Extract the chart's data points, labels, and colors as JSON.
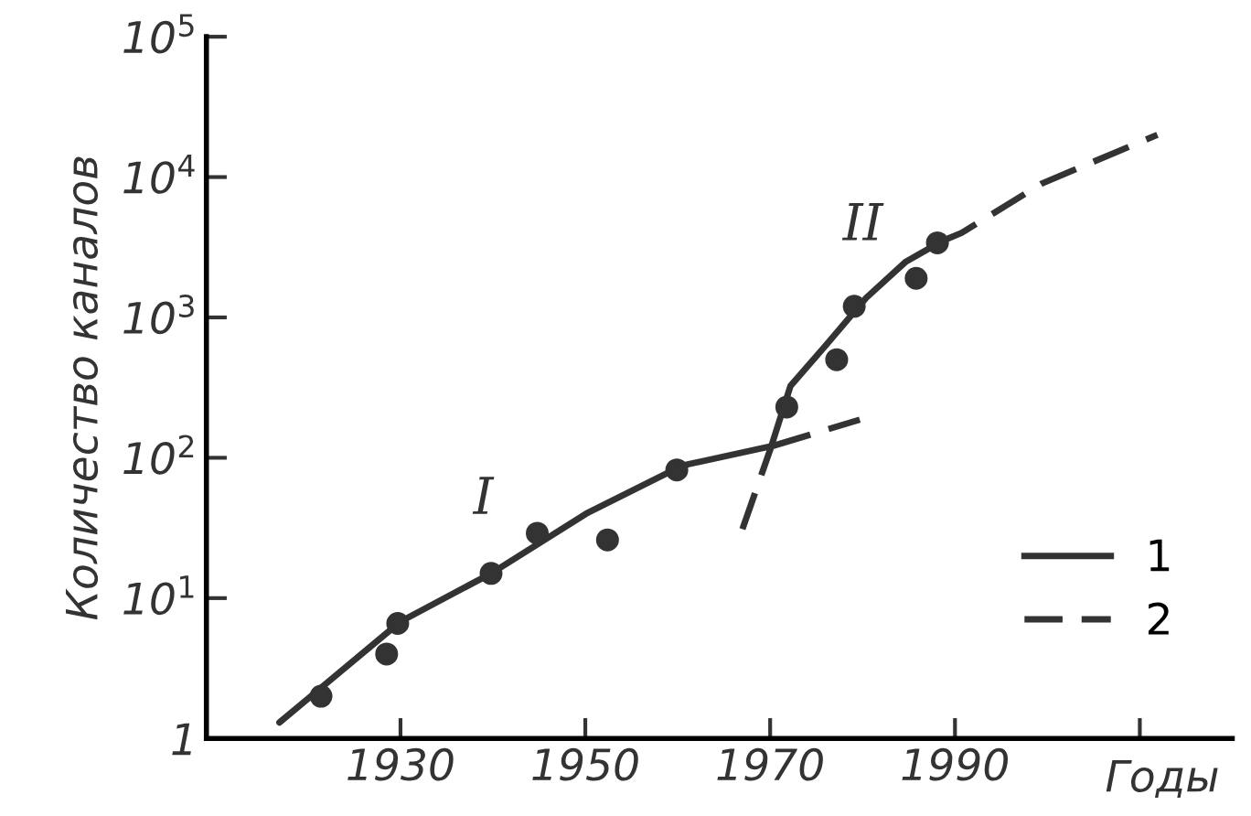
{
  "chart_data": {
    "type": "line",
    "xlabel": "Годы",
    "ylabel": "Количество каналов",
    "log": "y",
    "xlim": [
      1909,
      2020
    ],
    "ylim": [
      1,
      100000
    ],
    "xticks": [
      1930,
      1950,
      1970,
      1990,
      {
        "value": 2010,
        "label": null
      }
    ],
    "yticks": [
      1,
      {
        "value": 10,
        "label": "10$^{1}$"
      },
      {
        "value": 100,
        "label": "10$^{2}$"
      },
      {
        "value": 1000,
        "label": "10$^{3}$"
      },
      {
        "value": 10000,
        "label": "10$^{4}$"
      },
      {
        "value": 100000,
        "label": "10$^{5}$"
      }
    ],
    "grid": false,
    "legend": "bottom right",
    "series": [
      {
        "type": "scatter",
        "color": "#333333",
        "marker": "circle",
        "x": [
          1921.4,
          1928.5,
          1929.7,
          1939.8,
          1944.8,
          1952.4,
          1959.9,
          1971.8,
          1977.2,
          1979.1,
          1985.8,
          1988.1
        ],
        "values": [
          2,
          4,
          6.6,
          15,
          29,
          26,
          82,
          230,
          500,
          1200,
          1900,
          3400
        ]
      },
      {
        "name": "1",
        "color": "#333333",
        "line_style": "solid",
        "x": [
          1916.9,
          1930,
          1939.8,
          1950.1,
          1960.5,
          1970.4
        ],
        "values": [
          1.3,
          6.8,
          15,
          40,
          88,
          122
        ]
      },
      {
        "name": "2",
        "color": "#333333",
        "line_style": "dashed",
        "x": [
          1970.4,
          1979.7
        ],
        "values": [
          122,
          187
        ]
      },
      {
        "color": "#333333",
        "line_style": "dashed",
        "x": [
          1967,
          1970
        ],
        "values": [
          31,
          114
        ]
      },
      {
        "color": "#333333",
        "line_style": "solid",
        "x": [
          1970,
          1972.2,
          1976,
          1980.4,
          1984.7,
          1988.6
        ],
        "values": [
          114,
          325,
          630,
          1380,
          2500,
          3500
        ]
      },
      {
        "color": "#333333",
        "line_style": "dashed",
        "x": [
          1988.6,
          1990.7,
          1999.4,
          2011.9
        ],
        "values": [
          3500,
          4000,
          9000,
          20000
        ]
      }
    ],
    "annotations": [
      "I",
      "II"
    ]
  }
}
